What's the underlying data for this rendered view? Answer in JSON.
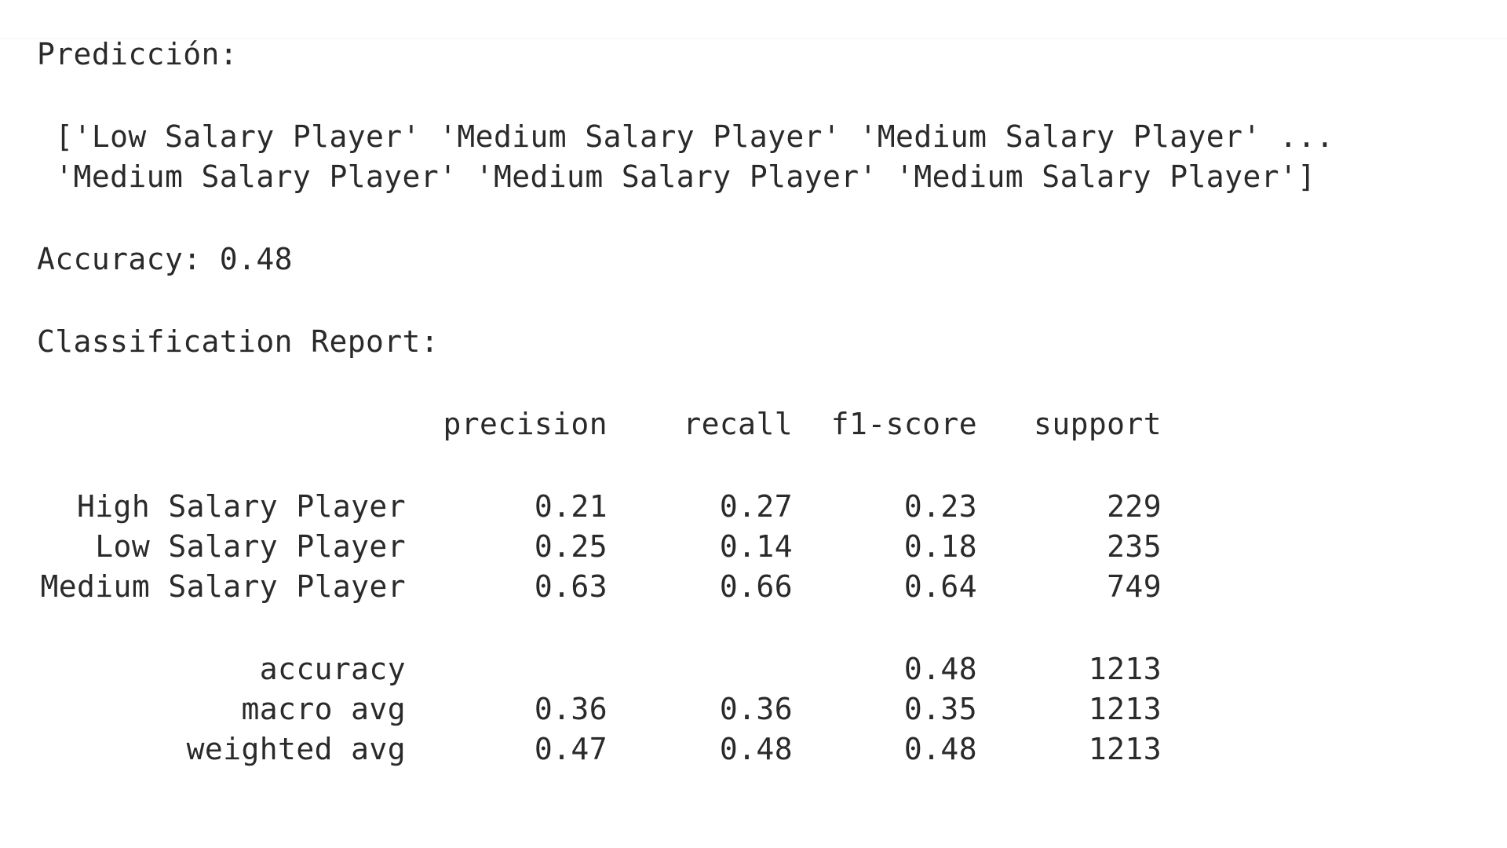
{
  "output": {
    "prediction_label": "Predicción:",
    "prediction_lines": [
      " ['Low Salary Player' 'Medium Salary Player' 'Medium Salary Player' ...",
      " 'Medium Salary Player' 'Medium Salary Player' 'Medium Salary Player']"
    ],
    "accuracy_line": "Accuracy: 0.48",
    "report_title": "Classification Report:",
    "report": {
      "headers": [
        "precision",
        "recall",
        "f1-score",
        "support"
      ],
      "classes": [
        {
          "label": "High Salary Player",
          "precision": "0.21",
          "recall": "0.27",
          "f1": "0.23",
          "support": "229"
        },
        {
          "label": "Low Salary Player",
          "precision": "0.25",
          "recall": "0.14",
          "f1": "0.18",
          "support": "235"
        },
        {
          "label": "Medium Salary Player",
          "precision": "0.63",
          "recall": "0.66",
          "f1": "0.64",
          "support": "749"
        }
      ],
      "summary": [
        {
          "label": "accuracy",
          "precision": "",
          "recall": "",
          "f1": "0.48",
          "support": "1213"
        },
        {
          "label": "macro avg",
          "precision": "0.36",
          "recall": "0.36",
          "f1": "0.35",
          "support": "1213"
        },
        {
          "label": "weighted avg",
          "precision": "0.47",
          "recall": "0.48",
          "f1": "0.48",
          "support": "1213"
        }
      ]
    }
  }
}
